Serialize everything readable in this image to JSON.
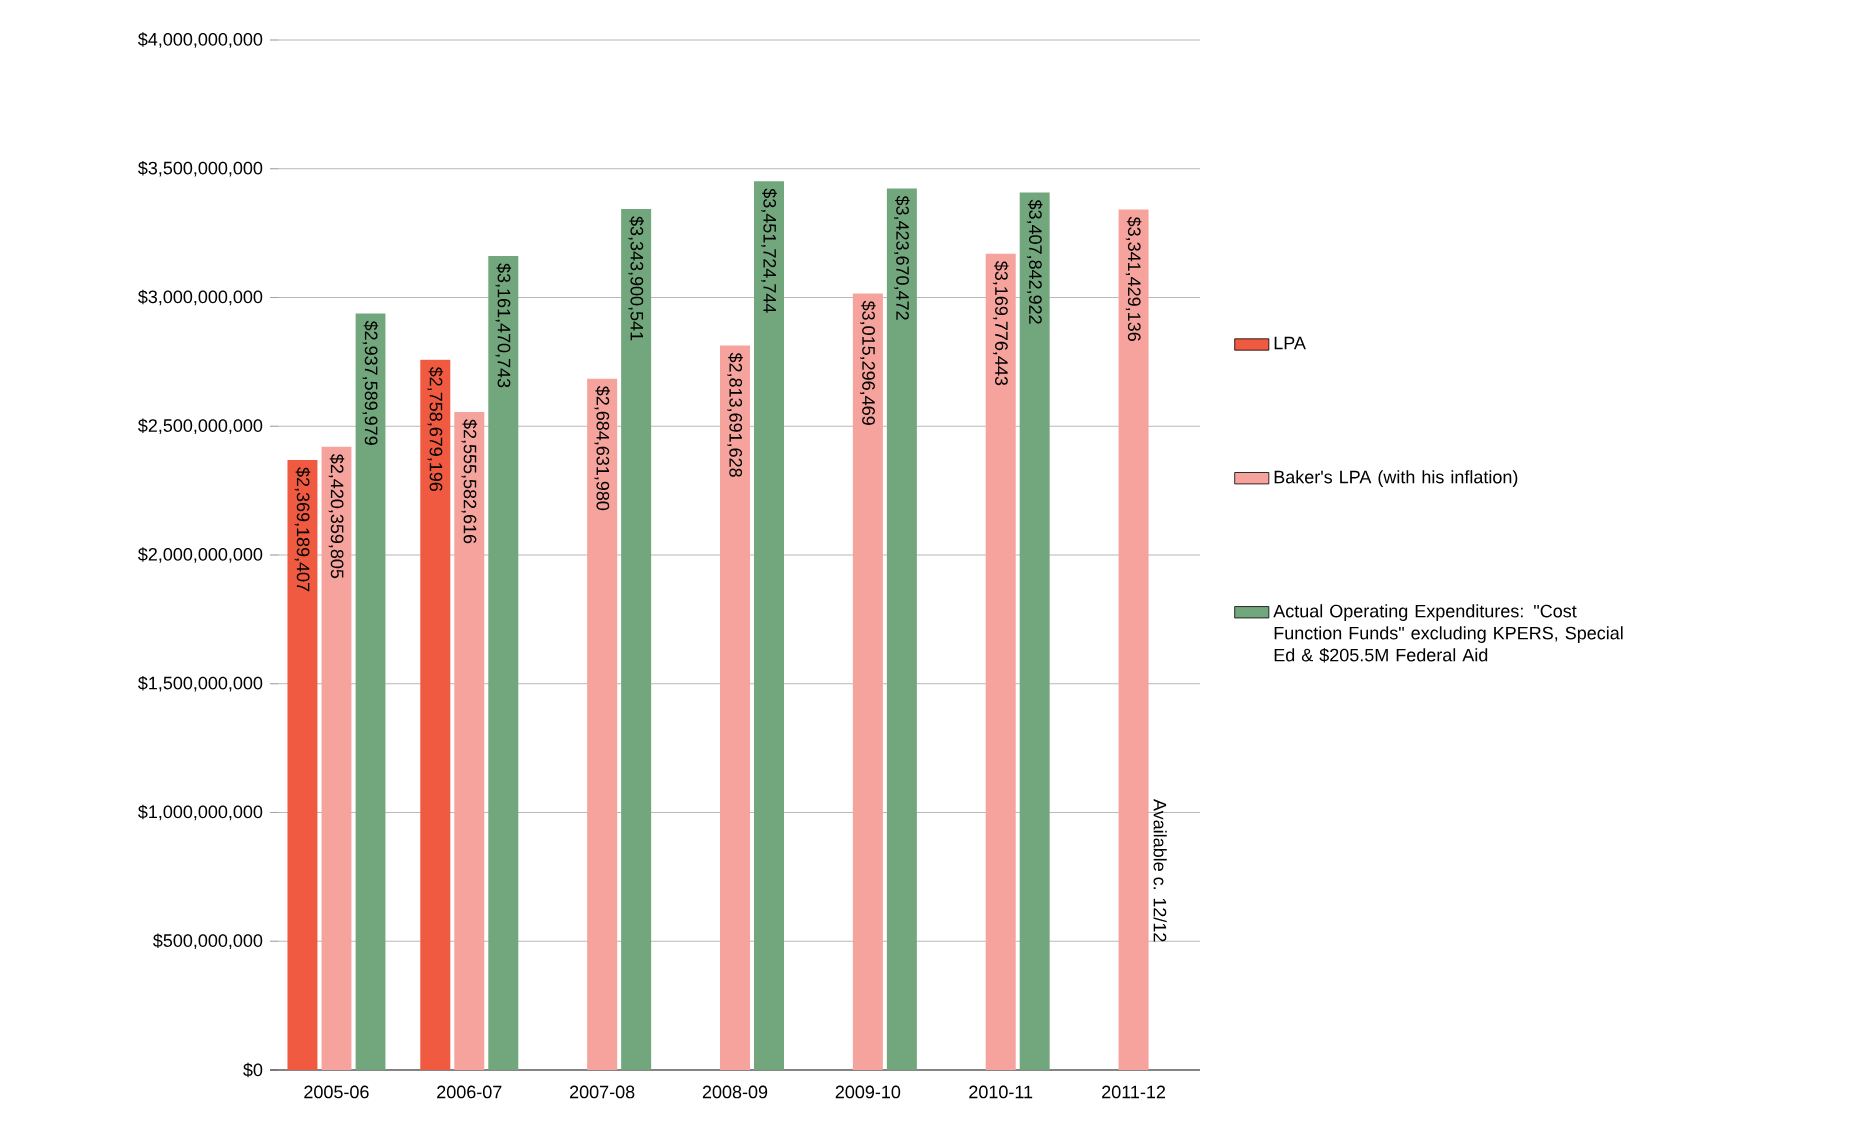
{
  "chart_data": {
    "type": "bar",
    "categories": [
      "2005-06",
      "2006-07",
      "2007-08",
      "2008-09",
      "2009-10",
      "2010-11",
      "2011-12"
    ],
    "series": [
      {
        "name": "LPA",
        "color": "#ef5a41",
        "values": [
          2369189407,
          2758679196,
          null,
          null,
          null,
          null,
          null
        ],
        "value_labels": [
          "$2,369,189,407",
          "$2,758,679,196",
          null,
          null,
          null,
          null,
          null
        ]
      },
      {
        "name": "Baker's LPA (with his inflation)",
        "color": "#f5a39c",
        "values": [
          2420359805,
          2555582616,
          2684631980,
          2813691628,
          3015296469,
          3169776443,
          3341429136
        ],
        "value_labels": [
          "$2,420,359,805",
          "$2,555,582,616",
          "$2,684,631,980",
          "$2,813,691,628",
          "$3,015,296,469",
          "$3,169,776,443",
          "$3,341,429,136"
        ]
      },
      {
        "name": "Actual Operating Expenditures: \"Cost Function Funds\" excluding KPERS, Special Ed & $205.5M Federal Aid",
        "color": "#72a67c",
        "values": [
          2937589979,
          3161470743,
          3343900541,
          3451724744,
          3423670472,
          3407842922,
          null
        ],
        "value_labels": [
          "$2,937,589,979",
          "$3,161,470,743",
          "$3,343,900,541",
          "$3,451,724,744",
          "$3,423,670,472",
          "$3,407,842,922",
          null
        ]
      }
    ],
    "annotations": [
      "Available c. 12/12"
    ],
    "ylim": [
      0,
      4000000000
    ],
    "yticks": [
      {
        "value": 0,
        "label": "$0"
      },
      {
        "value": 500000000,
        "label": "$500,000,000"
      },
      {
        "value": 1000000000,
        "label": "$1,000,000,000"
      },
      {
        "value": 1500000000,
        "label": "$1,500,000,000"
      },
      {
        "value": 2000000000,
        "label": "$2,000,000,000"
      },
      {
        "value": 2500000000,
        "label": "$2,500,000,000"
      },
      {
        "value": 3000000000,
        "label": "$3,000,000,000"
      },
      {
        "value": 3500000000,
        "label": "$3,500,000,000"
      },
      {
        "value": 4000000000,
        "label": "$4,000,000,000"
      }
    ],
    "grid": "y",
    "legend": "right"
  }
}
